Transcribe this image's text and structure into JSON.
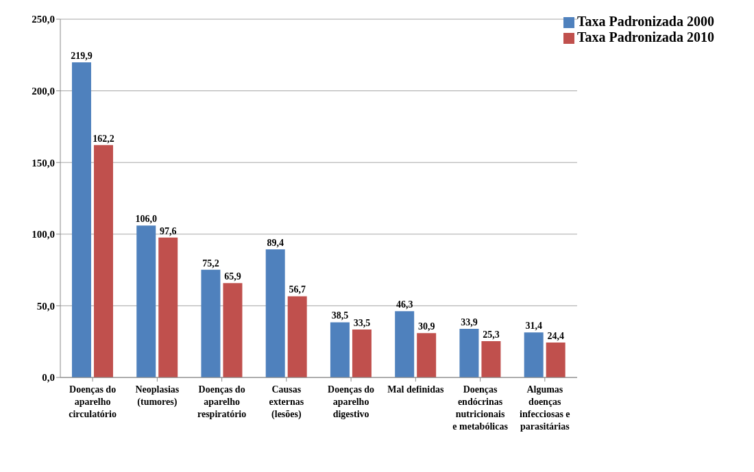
{
  "chart_data": {
    "type": "bar",
    "categories": [
      "Doenças do aparelho circulatório",
      "Neoplasias (tumores)",
      "Doenças do aparelho respiratório",
      "Causas externas (lesões)",
      "Doenças do aparelho digestivo",
      "Mal definidas",
      "Doenças endócrinas nutricionais e metabólicas",
      "Algumas doenças infecciosas e parasitárias"
    ],
    "series": [
      {
        "name": "Taxa Padronizada 2000",
        "color": "#4f81bd",
        "values": [
          219.9,
          106.0,
          75.2,
          89.4,
          38.5,
          46.3,
          33.9,
          31.4
        ],
        "value_labels": [
          "219,9",
          "106,0",
          "75,2",
          "89,4",
          "38,5",
          "46,3",
          "33,9",
          "31,4"
        ]
      },
      {
        "name": "Taxa Padronizada 2010",
        "color": "#c0504d",
        "values": [
          162.2,
          97.6,
          65.9,
          56.7,
          33.5,
          30.9,
          25.3,
          24.4
        ],
        "value_labels": [
          "162,2",
          "97,6",
          "65,9",
          "56,7",
          "33,5",
          "30,9",
          "25,3",
          "24,4"
        ]
      }
    ],
    "ylim": [
      0,
      250
    ],
    "yticks": [
      {
        "value": 0,
        "label": "0,0"
      },
      {
        "value": 50,
        "label": "50,0"
      },
      {
        "value": 100,
        "label": "100,0"
      },
      {
        "value": 150,
        "label": "150,0"
      },
      {
        "value": 200,
        "label": "200,0"
      },
      {
        "value": 250,
        "label": "250,0"
      }
    ],
    "grid": "y",
    "legend": "top right"
  }
}
